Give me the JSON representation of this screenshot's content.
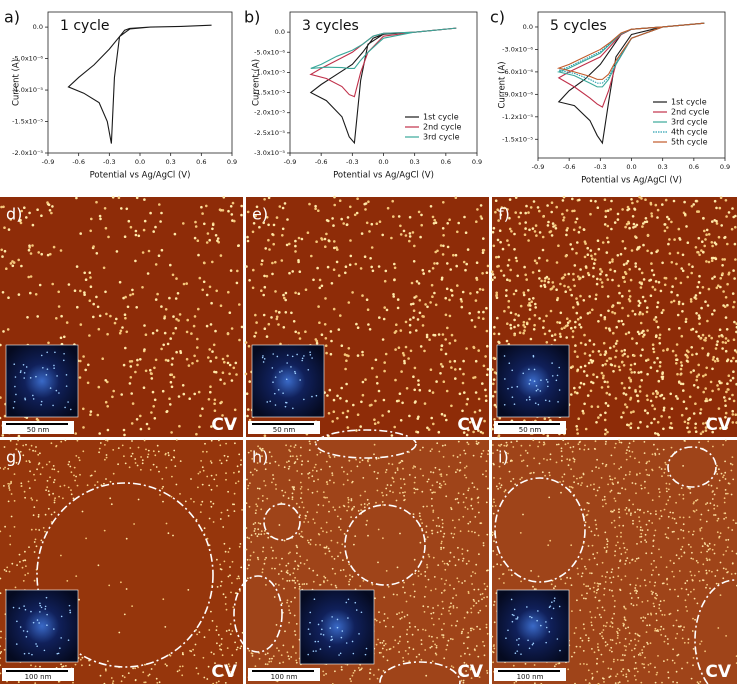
{
  "chart_data": [
    {
      "type": "line",
      "panel_label": "a)",
      "annotation": "1 cycle",
      "xlabel": "Potential vs Ag/AgCl (V)",
      "ylabel": "Current (A)",
      "xlim": [
        -0.9,
        0.9
      ],
      "xticks": [
        -0.9,
        -0.6,
        -0.3,
        {
          "value": 0,
          "label": "0.0"
        },
        0.3,
        0.6,
        0.9
      ],
      "ylim": [
        -2e-05,
        2.4e-06
      ],
      "yticks": [
        {
          "value": 0,
          "label": "0.0"
        },
        {
          "value": -5e-06,
          "label": "-5.0x10⁻⁶"
        },
        {
          "value": -1e-05,
          "label": "-1.0x10⁻⁵"
        },
        {
          "value": -1.5e-05,
          "label": "-1.5x10⁻⁵"
        },
        {
          "value": -2e-05,
          "label": "-2.0x10⁻⁵"
        }
      ],
      "x": [
        0.7,
        0.4,
        0.1,
        -0.1,
        -0.2,
        -0.25,
        -0.28,
        -0.32,
        -0.4,
        -0.55,
        -0.7,
        -0.6,
        -0.45,
        -0.3,
        -0.2,
        -0.15,
        -0.1,
        0.1,
        0.4,
        0.7
      ],
      "series": [
        {
          "color": "#1a1a1a",
          "values": [
            3e-07,
            1e-07,
            0,
            -3e-07,
            -1.5e-06,
            -8e-06,
            -1.85e-05,
            -1.5e-05,
            -1.2e-05,
            -1.05e-05,
            -9.5e-06,
            -8e-06,
            -6e-06,
            -3.5e-06,
            -1.5e-06,
            -5e-07,
            -2e-07,
            0,
            1e-07,
            3e-07
          ]
        }
      ]
    },
    {
      "type": "line",
      "panel_label": "b)",
      "annotation": "3 cycles",
      "xlabel": "Potential vs Ag/AgCl (V)",
      "ylabel": "Current (A)",
      "xlim": [
        -0.9,
        0.9
      ],
      "xticks": [
        -0.9,
        -0.6,
        -0.3,
        {
          "value": 0,
          "label": "0.0"
        },
        0.3,
        0.6,
        0.9
      ],
      "ylim": [
        -3e-05,
        5e-06
      ],
      "yticks": [
        {
          "value": 0,
          "label": "0.0"
        },
        {
          "value": -5e-06,
          "label": "-5.0x10⁻⁶"
        },
        {
          "value": -1e-05,
          "label": "-1.0x10⁻⁵"
        },
        {
          "value": -1.5e-05,
          "label": "-1.5x10⁻⁵"
        },
        {
          "value": -2e-05,
          "label": "-2.0x10⁻⁵"
        },
        {
          "value": -2.5e-05,
          "label": "-2.5x10⁻⁵"
        },
        {
          "value": -3e-05,
          "label": "-3.0x10⁻⁵"
        }
      ],
      "legend": "lower right",
      "x": [
        0.7,
        0.3,
        0,
        -0.15,
        -0.22,
        -0.28,
        -0.33,
        -0.4,
        -0.55,
        -0.7,
        -0.6,
        -0.45,
        -0.3,
        -0.2,
        -0.1,
        0,
        0.3,
        0.7
      ],
      "series": [
        {
          "name": "1st cycle",
          "color": "#1a1a1a",
          "values": [
            1e-06,
            0,
            -5e-07,
            -3e-06,
            -1.2e-05,
            -2.75e-05,
            -2.6e-05,
            -2.1e-05,
            -1.7e-05,
            -1.5e-05,
            -1.3e-05,
            -1.05e-05,
            -8e-06,
            -5e-06,
            -1.5e-06,
            -5e-07,
            0,
            1e-06
          ]
        },
        {
          "name": "2nd cycle",
          "color": "#c0304a",
          "values": [
            1e-06,
            0,
            -1e-06,
            -5e-06,
            -1e-05,
            -1.6e-05,
            -1.55e-05,
            -1.35e-05,
            -1.15e-05,
            -1.05e-05,
            -9e-06,
            -7e-06,
            -5e-06,
            -3e-06,
            -1e-06,
            -3e-07,
            0,
            1e-06
          ]
        },
        {
          "name": "3rd cycle",
          "color": "#3aa89a",
          "values": [
            1e-06,
            0,
            -1.5e-06,
            -5e-06,
            -7e-06,
            -9e-06,
            -9e-06,
            -8.8e-06,
            -8.7e-06,
            -9e-06,
            -8e-06,
            -6e-06,
            -4.5e-06,
            -3e-06,
            -1e-06,
            -3e-07,
            0,
            1e-06
          ]
        }
      ]
    },
    {
      "type": "line",
      "panel_label": "c)",
      "annotation": "5 cycles",
      "xlabel": "Potential vs Ag/AgCl (V)",
      "ylabel": "Current (A)",
      "xlim": [
        -0.9,
        0.9
      ],
      "xticks": [
        -0.9,
        -0.6,
        -0.3,
        {
          "value": 0,
          "label": "0.0"
        },
        0.3,
        0.6,
        0.9
      ],
      "ylim": [
        -1.75e-05,
        2e-06
      ],
      "yticks": [
        {
          "value": 0,
          "label": "0.0"
        },
        {
          "value": -3e-06,
          "label": "-3.0x10⁻⁶"
        },
        {
          "value": -6e-06,
          "label": "-6.0x10⁻⁶"
        },
        {
          "value": -9e-06,
          "label": "-9.0x10⁻⁶"
        },
        {
          "value": -1.2e-05,
          "label": "-1.2x10⁻⁵"
        },
        {
          "value": -1.5e-05,
          "label": "-1.5x10⁻⁵"
        }
      ],
      "legend": "lower right",
      "x": [
        0.7,
        0.3,
        0,
        -0.15,
        -0.22,
        -0.28,
        -0.33,
        -0.4,
        -0.55,
        -0.7,
        -0.6,
        -0.45,
        -0.3,
        -0.2,
        -0.1,
        0,
        0.3,
        0.7
      ],
      "series": [
        {
          "name": "1st cycle",
          "color": "#1a1a1a",
          "values": [
            5e-07,
            0,
            -1e-06,
            -4e-06,
            -1e-05,
            -1.55e-05,
            -1.45e-05,
            -1.25e-05,
            -1.05e-05,
            -1e-05,
            -8.5e-06,
            -7e-06,
            -5e-06,
            -3e-06,
            -1e-06,
            -3e-07,
            0,
            5e-07
          ]
        },
        {
          "name": "2nd cycle",
          "color": "#c0304a",
          "values": [
            5e-07,
            0,
            -1.5e-06,
            -5e-06,
            -8.5e-06,
            -1.07e-05,
            -1.03e-05,
            -9.5e-06,
            -8e-06,
            -6.8e-06,
            -6e-06,
            -5e-06,
            -4e-06,
            -2.5e-06,
            -1e-06,
            -3e-07,
            0,
            5e-07
          ]
        },
        {
          "name": "3rd cycle",
          "color": "#3aa89a",
          "values": [
            5e-07,
            0,
            -1.5e-06,
            -5e-06,
            -7e-06,
            -8e-06,
            -8e-06,
            -7.5e-06,
            -6.5e-06,
            -6e-06,
            -5.5e-06,
            -4.5e-06,
            -3.5e-06,
            -2.2e-06,
            -9e-07,
            -3e-07,
            0,
            5e-07
          ]
        },
        {
          "name": "4th cycle",
          "color": "#2aa0b0",
          "style": "dotted",
          "values": [
            5e-07,
            0,
            -1.5e-06,
            -4.8e-06,
            -6.7e-06,
            -7.5e-06,
            -7.5e-06,
            -7e-06,
            -6.2e-06,
            -5.8e-06,
            -5.3e-06,
            -4.3e-06,
            -3.3e-06,
            -2.1e-06,
            -9e-07,
            -3e-07,
            0,
            5e-07
          ]
        },
        {
          "name": "5th cycle",
          "color": "#c05a2a",
          "values": [
            5e-07,
            0,
            -1.5e-06,
            -4.5e-06,
            -6.3e-06,
            -7e-06,
            -7e-06,
            -6.6e-06,
            -6e-06,
            -5.5e-06,
            -5e-06,
            -4e-06,
            -3e-06,
            -2e-06,
            -8e-07,
            -3e-07,
            0,
            5e-07
          ]
        }
      ]
    }
  ],
  "panels": [
    {
      "label": "d)",
      "scale_bar": "50 nm",
      "method": "CV"
    },
    {
      "label": "e)",
      "scale_bar": "50 nm",
      "method": "CV"
    },
    {
      "label": "f)",
      "scale_bar": "50 nm",
      "method": "CV"
    },
    {
      "label": "g)",
      "scale_bar": "100 nm",
      "method": "CV"
    },
    {
      "label": "h)",
      "scale_bar": "100 nm",
      "method": "CV"
    },
    {
      "label": "i)",
      "scale_bar": "100 nm",
      "method": "CV"
    }
  ]
}
